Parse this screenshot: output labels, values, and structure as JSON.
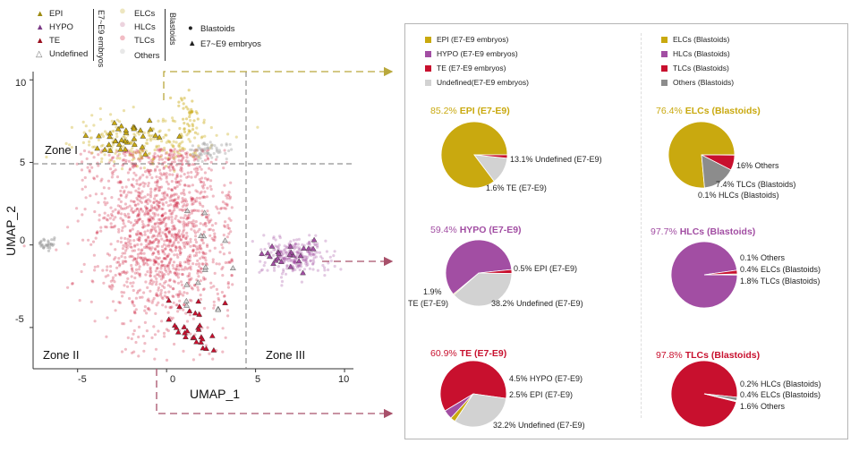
{
  "colors": {
    "epi": "#c9a90f",
    "hypo": "#a24ea3",
    "te": "#c8102e",
    "undefined": "#d2d2d2",
    "others": "#8c8c8c",
    "elc_light": "#ede6c0",
    "hlc_light": "#ecd3de",
    "tlc_light": "#f2bcc4",
    "zone_arrow_top": "#b9a83c",
    "zone_arrow": "#a8506a"
  },
  "umap_legend": {
    "embryo_items": [
      "EPI",
      "HYPO",
      "TE",
      "Undefined"
    ],
    "embryo_group": "E7~E9 embryos",
    "blastoid_items": [
      "ELCs",
      "HLCs",
      "TLCs",
      "Others"
    ],
    "blastoid_group": "Blastoids",
    "shape_items": [
      "Blastoids",
      "E7~E9 embryos"
    ]
  },
  "pie_legend": {
    "embryo": [
      "EPI (E7-E9 embryos)",
      "HYPO (E7-E9 embryos)",
      "TE (E7-E9 embryos)",
      "Undefined(E7-E9 embryos)"
    ],
    "blastoid": [
      "ELCs (Blastoids)",
      "HLCs (Blastoids)",
      "TLCs (Blastoids)",
      "Others (Blastoids)"
    ]
  },
  "chart_data": [
    {
      "type": "scatter",
      "xlabel": "UMAP_1",
      "ylabel": "UMAP_2",
      "xlim": [
        -7.5,
        10.5
      ],
      "ylim": [
        -7.5,
        10.5
      ],
      "xticks": [
        "-5",
        "0",
        "5",
        "10"
      ],
      "yticks": [
        "10",
        "5",
        "0",
        "-5"
      ],
      "zones": [
        "Zone I",
        "Zone II",
        "Zone III"
      ],
      "zone_boundaries": {
        "x": 4.2,
        "y": 5
      }
    },
    {
      "type": "pie",
      "title_value": "85.2%",
      "title_label": "EPI (E7-E9)",
      "slices": [
        {
          "name": "EPI (E7-E9)",
          "value": 85.2,
          "color": "#c9a90f"
        },
        {
          "name": "Undefined (E7-E9)",
          "value": 13.1,
          "color": "#d2d2d2"
        },
        {
          "name": "TE (E7-E9)",
          "value": 1.6,
          "color": "#c8102e"
        }
      ],
      "labels": [
        "13.1% Undefined (E7-E9)",
        "1.6% TE (E7-E9)"
      ]
    },
    {
      "type": "pie",
      "title_value": "76.4%",
      "title_label": "ELCs (Blastoids)",
      "slices": [
        {
          "name": "ELCs (Blastoids)",
          "value": 76.4,
          "color": "#c9a90f"
        },
        {
          "name": "Others",
          "value": 16,
          "color": "#8c8c8c"
        },
        {
          "name": "TLCs (Blastoids)",
          "value": 7.4,
          "color": "#c8102e"
        },
        {
          "name": "HLCs (Blastoids)",
          "value": 0.1,
          "color": "#a24ea3"
        }
      ],
      "labels": [
        "16% Others",
        "7.4% TLCs (Blastoids)",
        "0.1% HLCs (Blastoids)"
      ]
    },
    {
      "type": "pie",
      "title_value": "59.4%",
      "title_label": "HYPO (E7-E9)",
      "slices": [
        {
          "name": "HYPO (E7-E9)",
          "value": 59.4,
          "color": "#a24ea3"
        },
        {
          "name": "EPI (E7-E9)",
          "value": 0.5,
          "color": "#c9a90f"
        },
        {
          "name": "Undefined (E7-E9)",
          "value": 38.2,
          "color": "#d2d2d2"
        },
        {
          "name": "TE (E7-E9)",
          "value": 1.9,
          "color": "#c8102e"
        }
      ],
      "labels": [
        "0.5% EPI (E7-E9)",
        "1.9%",
        "TE (E7-E9)",
        "38.2% Undefined (E7-E9)"
      ]
    },
    {
      "type": "pie",
      "title_value": "97.7%",
      "title_label": "HLCs (Blastoids)",
      "slices": [
        {
          "name": "HLCs (Blastoids)",
          "value": 97.7,
          "color": "#a24ea3"
        },
        {
          "name": "Others",
          "value": 0.1,
          "color": "#8c8c8c"
        },
        {
          "name": "ELCs (Blastoids)",
          "value": 0.4,
          "color": "#c9a90f"
        },
        {
          "name": "TLCs (Blastoids)",
          "value": 1.8,
          "color": "#c8102e"
        }
      ],
      "labels": [
        "0.1% Others",
        "0.4% ELCs (Blastoids)",
        "1.8% TLCs (Blastoids)"
      ]
    },
    {
      "type": "pie",
      "title_value": "60.9%",
      "title_label": "TE (E7-E9)",
      "slices": [
        {
          "name": "TE (E7-E9)",
          "value": 60.9,
          "color": "#c8102e"
        },
        {
          "name": "HYPO (E7-E9)",
          "value": 4.5,
          "color": "#a24ea3"
        },
        {
          "name": "EPI (E7-E9)",
          "value": 2.5,
          "color": "#c9a90f"
        },
        {
          "name": "Undefined (E7-E9)",
          "value": 32.2,
          "color": "#d2d2d2"
        }
      ],
      "labels": [
        "4.5% HYPO (E7-E9)",
        "2.5% EPI (E7-E9)",
        "32.2% Undefined (E7-E9)"
      ]
    },
    {
      "type": "pie",
      "title_value": "97.8%",
      "title_label": "TLCs (Blastoids)",
      "slices": [
        {
          "name": "TLCs (Blastoids)",
          "value": 97.8,
          "color": "#c8102e"
        },
        {
          "name": "HLCs (Blastoids)",
          "value": 0.2,
          "color": "#a24ea3"
        },
        {
          "name": "ELCs (Blastoids)",
          "value": 0.4,
          "color": "#c9a90f"
        },
        {
          "name": "Others",
          "value": 1.6,
          "color": "#8c8c8c"
        }
      ],
      "labels": [
        "0.2% HLCs (Blastoids)",
        "0.4% ELCs (Blastoids)",
        "1.6% Others"
      ]
    }
  ]
}
